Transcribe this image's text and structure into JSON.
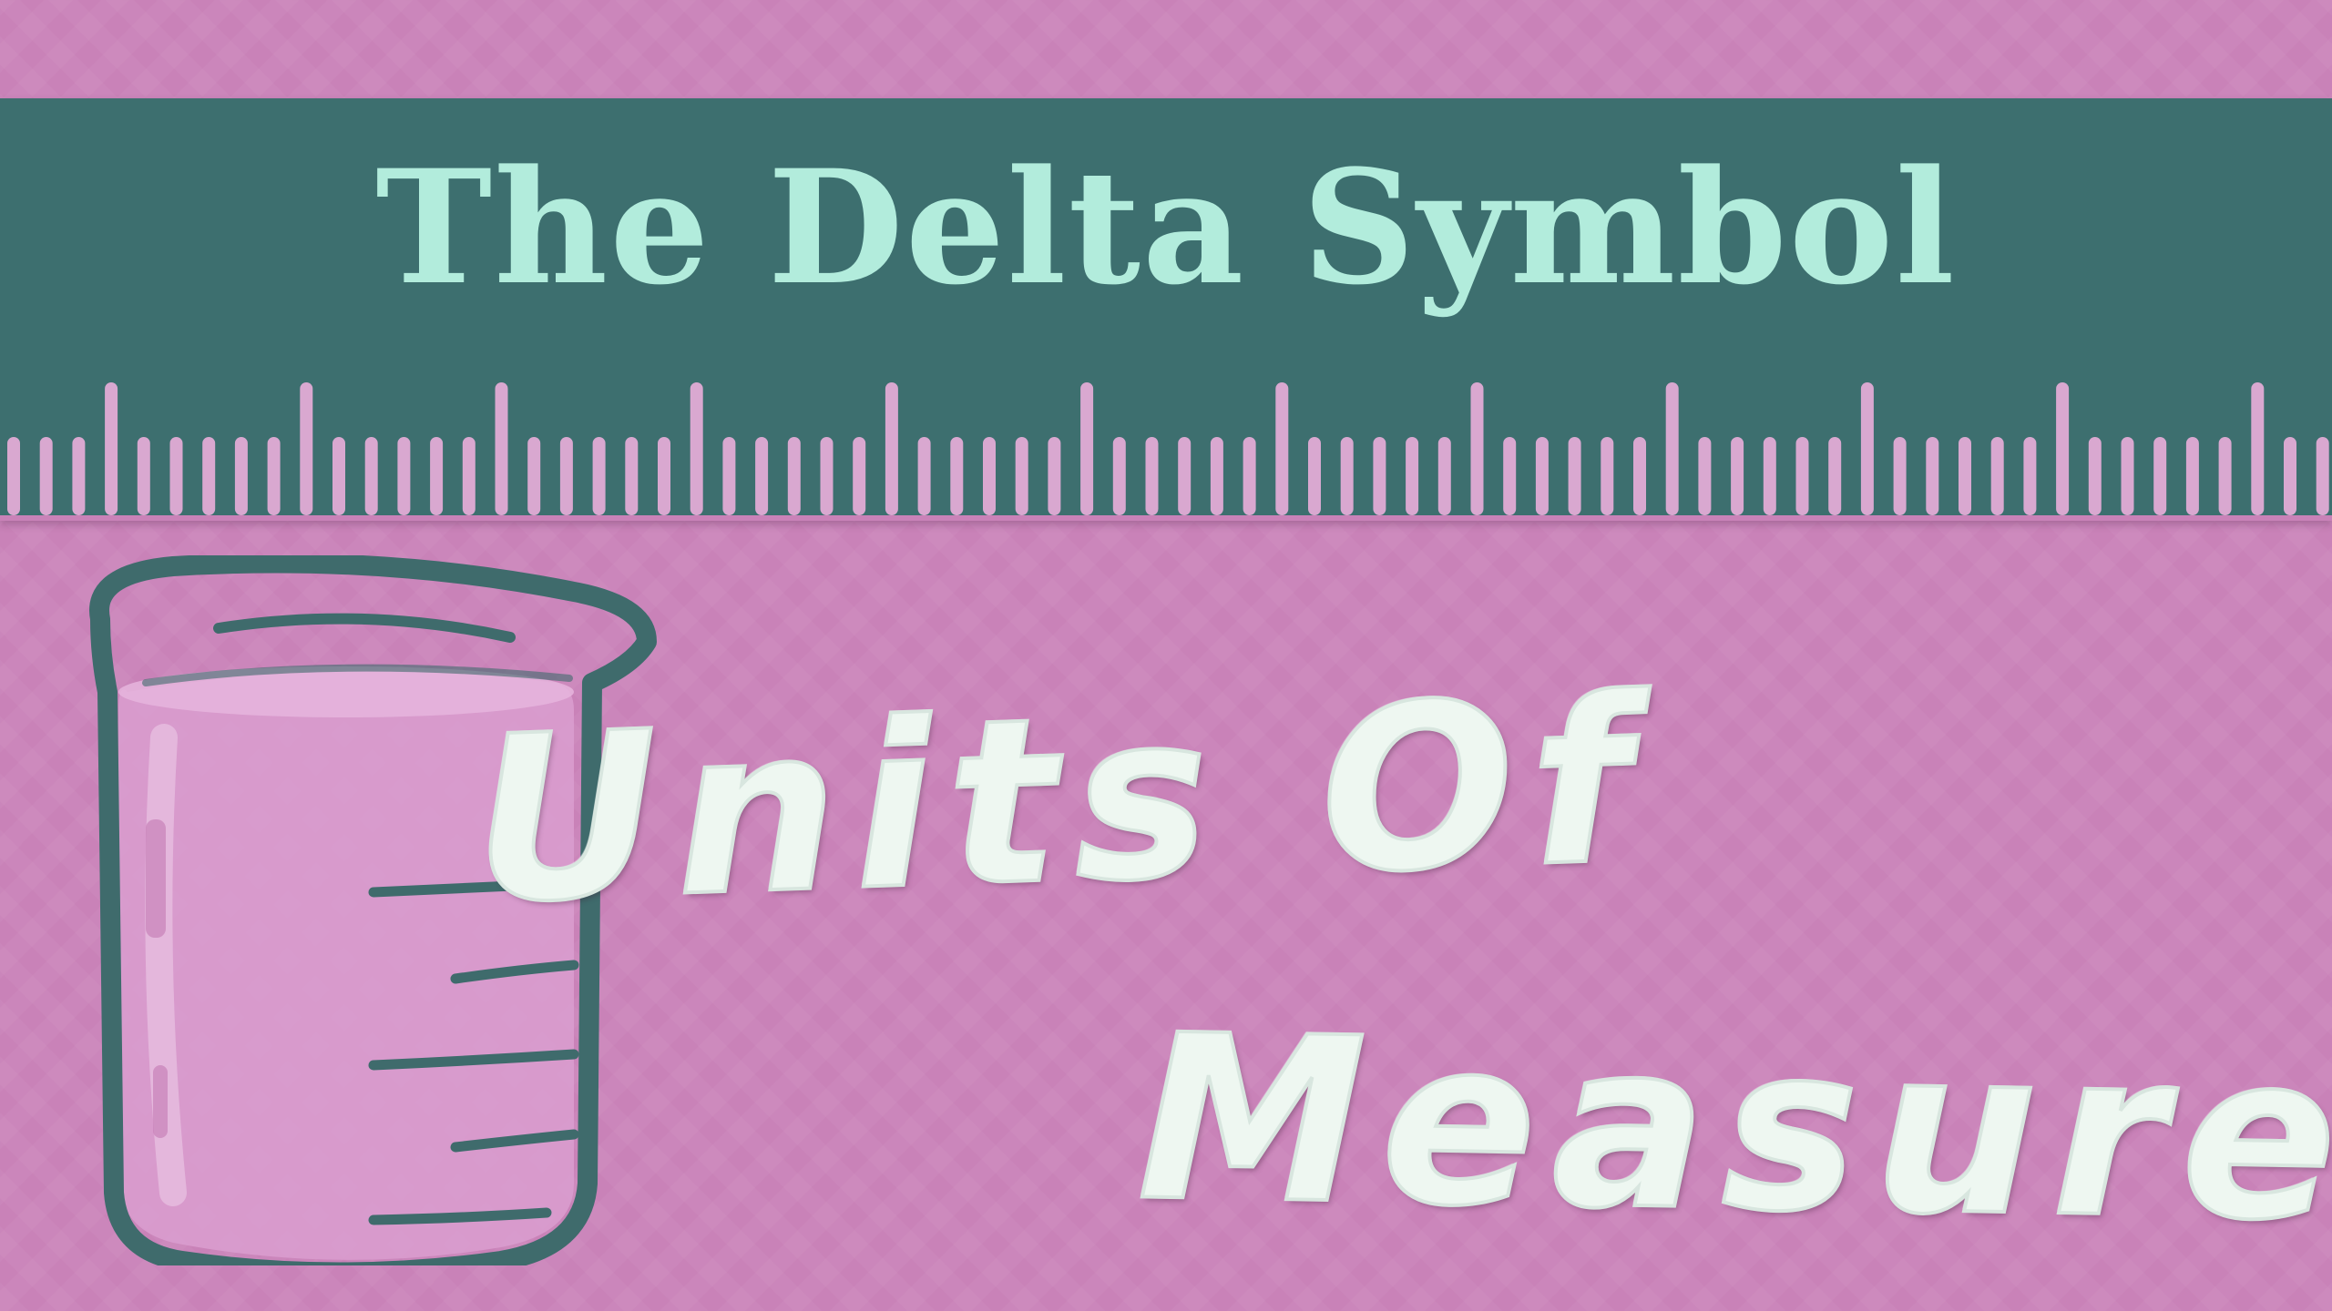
{
  "title": "The Delta Symbol",
  "subtitle": {
    "line1": "Units Of",
    "line2": "Measure"
  },
  "colors": {
    "background": "#c982b8",
    "banner": "#3d6f6f",
    "title_text": "#b2ecdc",
    "ruler_ticks": "#d9a8d0",
    "beaker_outline": "#3f6b6c",
    "beaker_fill": "#d99cce",
    "subtitle_text": "#eef7f1"
  },
  "icons": [
    "ruler-icon",
    "beaker-icon"
  ]
}
